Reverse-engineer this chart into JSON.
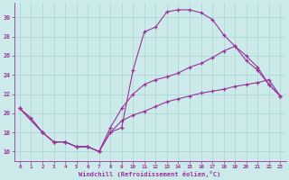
{
  "xlabel": "Windchill (Refroidissement éolien,°C)",
  "xlim": [
    -0.5,
    23.5
  ],
  "ylim": [
    15.0,
    31.5
  ],
  "yticks": [
    16,
    18,
    20,
    22,
    24,
    26,
    28,
    30
  ],
  "xticks": [
    0,
    1,
    2,
    3,
    4,
    5,
    6,
    7,
    8,
    9,
    10,
    11,
    12,
    13,
    14,
    15,
    16,
    17,
    18,
    19,
    20,
    21,
    22,
    23
  ],
  "background_color": "#cceaea",
  "line_color": "#993399",
  "grid_color": "#aad4d4",
  "line1_x": [
    0,
    1,
    2,
    3,
    4,
    5,
    6,
    7,
    8,
    9,
    10,
    11,
    12,
    13,
    14,
    15,
    16,
    17,
    18,
    19,
    20,
    21,
    22,
    23
  ],
  "line1_y": [
    20.5,
    19.5,
    18.0,
    17.0,
    17.0,
    16.5,
    16.5,
    16.0,
    18.0,
    18.5,
    24.5,
    28.5,
    29.0,
    30.6,
    30.8,
    30.8,
    30.5,
    29.8,
    28.2,
    27.0,
    25.5,
    24.5,
    23.0,
    21.8
  ],
  "line2_x": [
    0,
    2,
    3,
    4,
    5,
    6,
    7,
    8,
    9,
    10,
    11,
    12,
    13,
    14,
    15,
    16,
    17,
    18,
    19,
    20,
    21,
    22,
    23
  ],
  "line2_y": [
    20.5,
    18.0,
    17.0,
    17.0,
    16.5,
    16.5,
    16.0,
    18.5,
    20.5,
    22.0,
    23.0,
    23.5,
    23.8,
    24.2,
    24.8,
    25.2,
    25.8,
    26.5,
    27.0,
    26.0,
    24.8,
    23.0,
    21.8
  ],
  "line3_x": [
    0,
    2,
    3,
    4,
    5,
    6,
    7,
    8,
    9,
    10,
    11,
    12,
    13,
    14,
    15,
    16,
    17,
    18,
    19,
    20,
    21,
    22,
    23
  ],
  "line3_y": [
    20.5,
    18.0,
    17.0,
    17.0,
    16.5,
    16.5,
    16.0,
    18.0,
    19.2,
    19.8,
    20.2,
    20.7,
    21.2,
    21.5,
    21.8,
    22.1,
    22.3,
    22.5,
    22.8,
    23.0,
    23.2,
    23.5,
    21.8
  ]
}
